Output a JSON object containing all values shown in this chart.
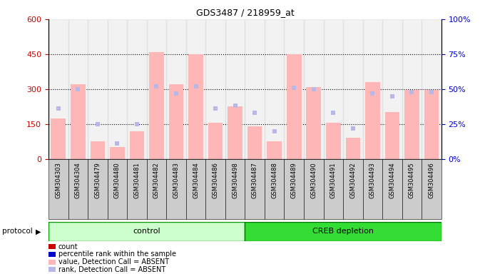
{
  "title": "GDS3487 / 218959_at",
  "samples": [
    "GSM304303",
    "GSM304304",
    "GSM304479",
    "GSM304480",
    "GSM304481",
    "GSM304482",
    "GSM304483",
    "GSM304484",
    "GSM304486",
    "GSM304498",
    "GSM304487",
    "GSM304488",
    "GSM304489",
    "GSM304490",
    "GSM304491",
    "GSM304492",
    "GSM304493",
    "GSM304494",
    "GSM304495",
    "GSM304496"
  ],
  "absent_value_bars": [
    175,
    320,
    75,
    50,
    120,
    460,
    320,
    450,
    155,
    225,
    140,
    75,
    450,
    310,
    155,
    90,
    330,
    200,
    295,
    295
  ],
  "absent_rank_pct": [
    36,
    50,
    25,
    11,
    25,
    52,
    47,
    52,
    36,
    38,
    33,
    20,
    51,
    50,
    33,
    22,
    47,
    45,
    48,
    48
  ],
  "ylim_left": [
    0,
    600
  ],
  "ylim_right": [
    0,
    100
  ],
  "yticks_left": [
    0,
    150,
    300,
    450,
    600
  ],
  "yticks_right": [
    0,
    25,
    50,
    75,
    100
  ],
  "ytick_labels_left": [
    "0",
    "150",
    "300",
    "450",
    "600"
  ],
  "ytick_labels_right": [
    "0%",
    "25%",
    "50%",
    "75%",
    "100%"
  ],
  "color_absent_value": "#ffb6b6",
  "color_absent_rank": "#b8b8e8",
  "color_count": "#cc0000",
  "color_rank": "#0000cc",
  "color_control_bg": "#ccffcc",
  "color_creb_bg": "#33dd33",
  "color_sample_bg": "#cccccc",
  "protocol_label": "protocol",
  "control_label": "control",
  "creb_label": "CREB depletion",
  "legend_items": [
    "count",
    "percentile rank within the sample",
    "value, Detection Call = ABSENT",
    "rank, Detection Call = ABSENT"
  ],
  "legend_colors": [
    "#cc0000",
    "#0000cc",
    "#ffb6b6",
    "#b8b8e8"
  ],
  "dotted_yticks": [
    150,
    300,
    450
  ],
  "n_control": 10,
  "n_creb": 10
}
